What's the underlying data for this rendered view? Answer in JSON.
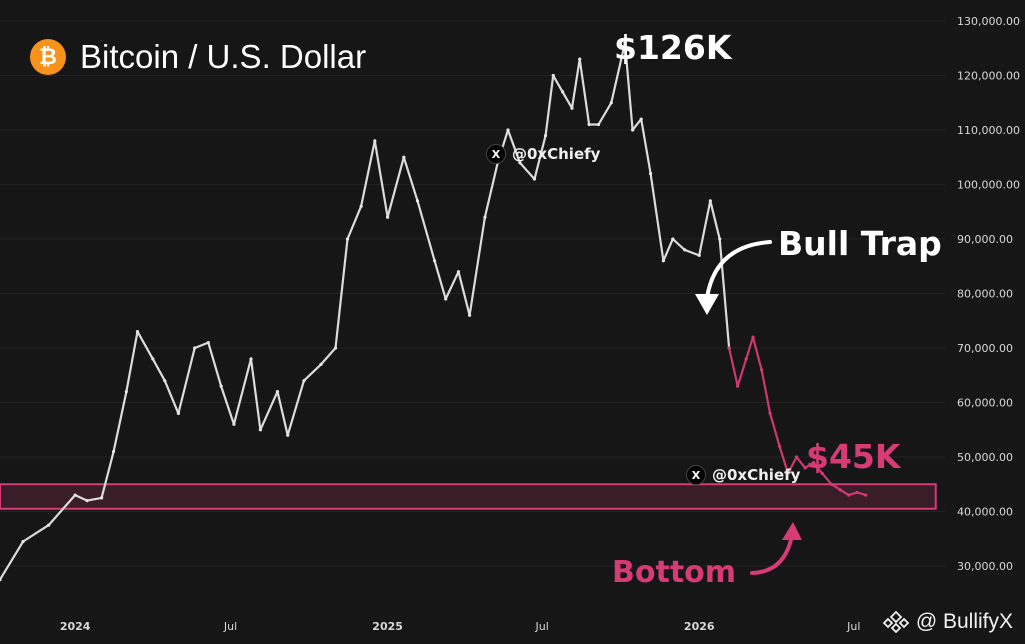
{
  "title": "Bitcoin / U.S. Dollar",
  "colors": {
    "background": "#161616",
    "price": "#e6e6e6",
    "bear": "#d63b73",
    "icon": "#f7931a"
  },
  "annotations": {
    "high": "$126K",
    "bull_trap": "Bull Trap",
    "current": "$45K",
    "bottom": "Bottom"
  },
  "watermarks": [
    "@0xChiefy",
    "@0xChiefy"
  ],
  "brand": "@ BullifyX",
  "chart_data": {
    "type": "line",
    "title": "Bitcoin / U.S. Dollar",
    "ylim": [
      25000,
      130000
    ],
    "y_ticks": [
      "130,000.00",
      "120,000.00",
      "110,000.00",
      "100,000.00",
      "90,000.00",
      "80,000.00",
      "70,000.00",
      "60,000.00",
      "50,000.00",
      "40,000.00",
      "30,000.00"
    ],
    "x_ticks": [
      "2024",
      "Jul",
      "2025",
      "Jul",
      "2026",
      "Jul"
    ],
    "x_tick_dates": [
      "2024-01-01",
      "2024-07-01",
      "2025-01-01",
      "2025-07-01",
      "2026-01-01",
      "2026-07-01"
    ],
    "xlim": [
      "2023-10-05",
      "2026-10-10"
    ],
    "series": [
      {
        "role": "history",
        "x": [
          "2023-10-05",
          "2023-11-01",
          "2023-12-01",
          "2024-01-01",
          "2024-01-15",
          "2024-02-01",
          "2024-02-15",
          "2024-03-01",
          "2024-03-14",
          "2024-04-01",
          "2024-04-15",
          "2024-05-01",
          "2024-05-20",
          "2024-06-05",
          "2024-06-20",
          "2024-07-05",
          "2024-07-25",
          "2024-08-05",
          "2024-08-25",
          "2024-09-06",
          "2024-09-25",
          "2024-10-15",
          "2024-11-01",
          "2024-11-15",
          "2024-12-01",
          "2024-12-17",
          "2025-01-01",
          "2025-01-20",
          "2025-02-05",
          "2025-02-25",
          "2025-03-10",
          "2025-03-25",
          "2025-04-07",
          "2025-04-25",
          "2025-05-10",
          "2025-05-22",
          "2025-06-05",
          "2025-06-22",
          "2025-07-05",
          "2025-07-14",
          "2025-07-25",
          "2025-08-05",
          "2025-08-14",
          "2025-08-25",
          "2025-09-05",
          "2025-09-20",
          "2025-10-06",
          "2025-10-15",
          "2025-10-25",
          "2025-11-05",
          "2025-11-20",
          "2025-12-01",
          "2025-12-15",
          "2026-01-01",
          "2026-01-14",
          "2026-01-25",
          "2026-02-05"
        ],
        "values": [
          27500,
          34500,
          37500,
          43000,
          42000,
          42500,
          51000,
          62000,
          73000,
          68000,
          64000,
          58000,
          70000,
          71000,
          63000,
          56000,
          68000,
          55000,
          62000,
          54000,
          64000,
          67000,
          70000,
          90000,
          96000,
          108000,
          94000,
          105000,
          97000,
          86000,
          79000,
          84000,
          76000,
          94000,
          104000,
          110000,
          104000,
          101000,
          109000,
          120000,
          117000,
          114000,
          123000,
          111000,
          111000,
          115000,
          126000,
          110000,
          112000,
          102000,
          86000,
          90000,
          88000,
          87000,
          97000,
          90000,
          70000
        ]
      },
      {
        "role": "projection",
        "x": [
          "2026-02-05",
          "2026-02-15",
          "2026-02-25",
          "2026-03-05",
          "2026-03-15",
          "2026-03-25",
          "2026-04-05",
          "2026-04-15",
          "2026-04-25",
          "2026-05-05",
          "2026-05-15",
          "2026-05-25",
          "2026-06-05",
          "2026-06-15",
          "2026-06-25",
          "2026-07-05",
          "2026-07-15"
        ],
        "values": [
          70000,
          63000,
          68000,
          72000,
          66000,
          58000,
          52000,
          47000,
          50000,
          48000,
          49000,
          47000,
          45000,
          44000,
          43000,
          43500,
          43000
        ]
      }
    ],
    "zone": {
      "y": [
        40500,
        45000
      ],
      "x": [
        "2023-10-05",
        "2026-10-05"
      ]
    },
    "annotations": [
      {
        "text": "$126K",
        "x": "2025-10-06",
        "y": 126000
      },
      {
        "text": "Bull Trap",
        "x": "2026-03-05",
        "y": 72000
      },
      {
        "text": "$45K",
        "x": "2026-07-05",
        "y": 45000
      },
      {
        "text": "Bottom",
        "x": "2026-07-05",
        "y": 40500
      }
    ]
  }
}
